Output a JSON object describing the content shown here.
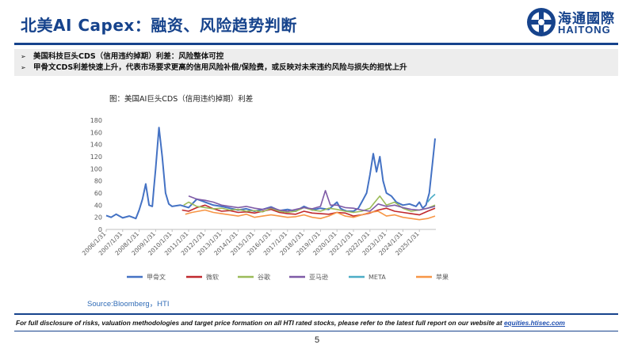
{
  "slide": {
    "title": "北美AI Capex：融资、风险趋势判断",
    "logo": {
      "cn": "海通國際",
      "en": "HAITONG"
    },
    "bullets": [
      "美国科技巨头CDS（信用违约掉期）利差：风险整体可控",
      "甲骨文CDS利差快速上升，代表市场要求更高的信用风险补偿/保险费，或反映对未来违约风险与损失的担忧上升"
    ],
    "bullet_marker": "➢",
    "chart_caption": "图：美国AI巨头CDS（信用违约掉期）利差",
    "source": "Source:Bloomberg，HTI",
    "disclaimer_text": "For full disclosure of risks, valuation methodologies and target price formation on all HTI rated stocks, please refer to the latest full report on our website at ",
    "disclaimer_link": "equities.htisec.com",
    "page_number": "5",
    "colors": {
      "brand": "#16438c",
      "bullet_bg": "#ededed",
      "source": "#2f6bb6"
    }
  },
  "chart_data": {
    "type": "line",
    "title": "",
    "xlabel": "",
    "ylabel": "",
    "ylim": [
      0,
      180
    ],
    "yticks": [
      "0",
      "20",
      "40",
      "60",
      "80",
      "100",
      "120",
      "140",
      "160",
      "180"
    ],
    "xticks": [
      "2006/1/31",
      "2007/1/31",
      "2008/1/31",
      "2009/1/31",
      "2010/1/31",
      "2011/1/31",
      "2012/1/31",
      "2013/1/31",
      "2014/1/31",
      "2015/1/31",
      "2016/1/31",
      "2017/1/31",
      "2018/1/31",
      "2019/1/31",
      "2020/1/31",
      "2021/1/31",
      "2022/1/31",
      "2023/1/31",
      "2024/1/31",
      "2025/1/31"
    ],
    "xrange": [
      2006.0,
      2026.0
    ],
    "legend_position": "bottom",
    "series": [
      {
        "name": "甲骨文",
        "color": "#4472c4",
        "x": [
          2006.0,
          2006.3,
          2006.6,
          2007.0,
          2007.4,
          2007.8,
          2008.0,
          2008.2,
          2008.4,
          2008.6,
          2008.8,
          2008.9,
          2009.0,
          2009.2,
          2009.4,
          2009.6,
          2009.8,
          2010.0,
          2010.5,
          2011.0,
          2011.5,
          2012.0,
          2012.5,
          2013.0,
          2013.5,
          2014.0,
          2014.5,
          2015.0,
          2015.5,
          2016.0,
          2016.5,
          2017.0,
          2017.5,
          2018.0,
          2018.5,
          2019.0,
          2019.5,
          2020.0,
          2020.2,
          2020.4,
          2020.6,
          2021.0,
          2021.3,
          2021.6,
          2021.8,
          2022.0,
          2022.2,
          2022.4,
          2022.6,
          2022.8,
          2023.0,
          2023.3,
          2023.6,
          2024.0,
          2024.4,
          2024.8,
          2025.0,
          2025.2,
          2025.4,
          2025.6,
          2025.8,
          2025.95
        ],
        "y": [
          23,
          20,
          25,
          19,
          22,
          18,
          32,
          50,
          75,
          40,
          38,
          70,
          100,
          168,
          120,
          60,
          42,
          38,
          40,
          36,
          50,
          45,
          40,
          38,
          35,
          32,
          34,
          30,
          33,
          37,
          31,
          33,
          30,
          38,
          32,
          35,
          33,
          45,
          35,
          32,
          30,
          30,
          35,
          50,
          60,
          90,
          125,
          95,
          120,
          80,
          60,
          55,
          45,
          40,
          42,
          38,
          45,
          35,
          40,
          60,
          110,
          150
        ]
      },
      {
        "name": "微软",
        "color": "#c0282d",
        "x": [
          2010.6,
          2011.0,
          2011.5,
          2012.0,
          2012.5,
          2013.0,
          2013.5,
          2014.0,
          2014.5,
          2015.0,
          2015.5,
          2016.0,
          2016.5,
          2017.0,
          2017.5,
          2018.0,
          2018.5,
          2019.0,
          2019.5,
          2020.0,
          2020.5,
          2021.0,
          2021.5,
          2022.0,
          2022.5,
          2023.0,
          2023.5,
          2024.0,
          2024.5,
          2025.0,
          2025.5,
          2025.95
        ],
        "y": [
          32,
          30,
          36,
          40,
          34,
          30,
          31,
          28,
          29,
          27,
          30,
          33,
          28,
          26,
          25,
          30,
          27,
          26,
          25,
          28,
          27,
          22,
          24,
          27,
          32,
          35,
          30,
          28,
          26,
          24,
          30,
          35
        ]
      },
      {
        "name": "谷歌",
        "color": "#9bbb59",
        "x": [
          2010.7,
          2011.0,
          2011.5,
          2012.0,
          2012.5,
          2013.0,
          2013.5,
          2014.0,
          2014.5,
          2015.0,
          2015.5,
          2016.0,
          2016.5,
          2017.0,
          2017.5,
          2018.0,
          2018.5,
          2019.0,
          2019.5,
          2020.0,
          2020.5,
          2021.0,
          2021.5,
          2022.0,
          2022.3,
          2022.6,
          2023.0,
          2023.5,
          2024.0,
          2024.5,
          2025.0,
          2025.5,
          2025.95
        ],
        "y": [
          40,
          45,
          38,
          36,
          34,
          35,
          32,
          33,
          30,
          31,
          29,
          35,
          30,
          28,
          30,
          36,
          32,
          30,
          35,
          33,
          30,
          28,
          30,
          35,
          45,
          55,
          40,
          45,
          35,
          30,
          32,
          35,
          40
        ]
      },
      {
        "name": "亚马逊",
        "color": "#7e5aa6",
        "x": [
          2011.0,
          2011.5,
          2012.0,
          2012.5,
          2013.0,
          2013.5,
          2014.0,
          2014.5,
          2015.0,
          2015.5,
          2016.0,
          2016.5,
          2017.0,
          2017.5,
          2018.0,
          2018.5,
          2019.0,
          2019.3,
          2019.6,
          2020.0,
          2020.5,
          2021.0,
          2021.5,
          2022.0,
          2022.5,
          2023.0,
          2023.5,
          2024.0,
          2024.5,
          2025.0,
          2025.5,
          2025.95
        ],
        "y": [
          55,
          50,
          48,
          45,
          40,
          38,
          36,
          38,
          35,
          33,
          36,
          32,
          30,
          33,
          36,
          34,
          38,
          64,
          40,
          40,
          36,
          35,
          32,
          30,
          42,
          38,
          40,
          36,
          33,
          32,
          35,
          38
        ]
      },
      {
        "name": "META",
        "color": "#4bacc6",
        "x": [
          2025.5,
          2025.7,
          2025.95
        ],
        "y": [
          45,
          52,
          58
        ]
      },
      {
        "name": "苹果",
        "color": "#f79646",
        "x": [
          2010.8,
          2011.2,
          2011.6,
          2012.0,
          2012.5,
          2013.0,
          2013.5,
          2014.0,
          2014.5,
          2015.0,
          2015.5,
          2016.0,
          2016.5,
          2017.0,
          2017.5,
          2018.0,
          2018.5,
          2019.0,
          2019.5,
          2020.0,
          2020.5,
          2021.0,
          2021.5,
          2022.0,
          2022.5,
          2023.0,
          2023.5,
          2024.0,
          2024.5,
          2025.0,
          2025.5,
          2025.95
        ],
        "y": [
          25,
          28,
          30,
          32,
          28,
          26,
          24,
          22,
          25,
          20,
          22,
          24,
          22,
          20,
          21,
          24,
          20,
          18,
          22,
          28,
          22,
          20,
          24,
          28,
          30,
          22,
          24,
          20,
          18,
          16,
          18,
          22
        ]
      }
    ]
  }
}
